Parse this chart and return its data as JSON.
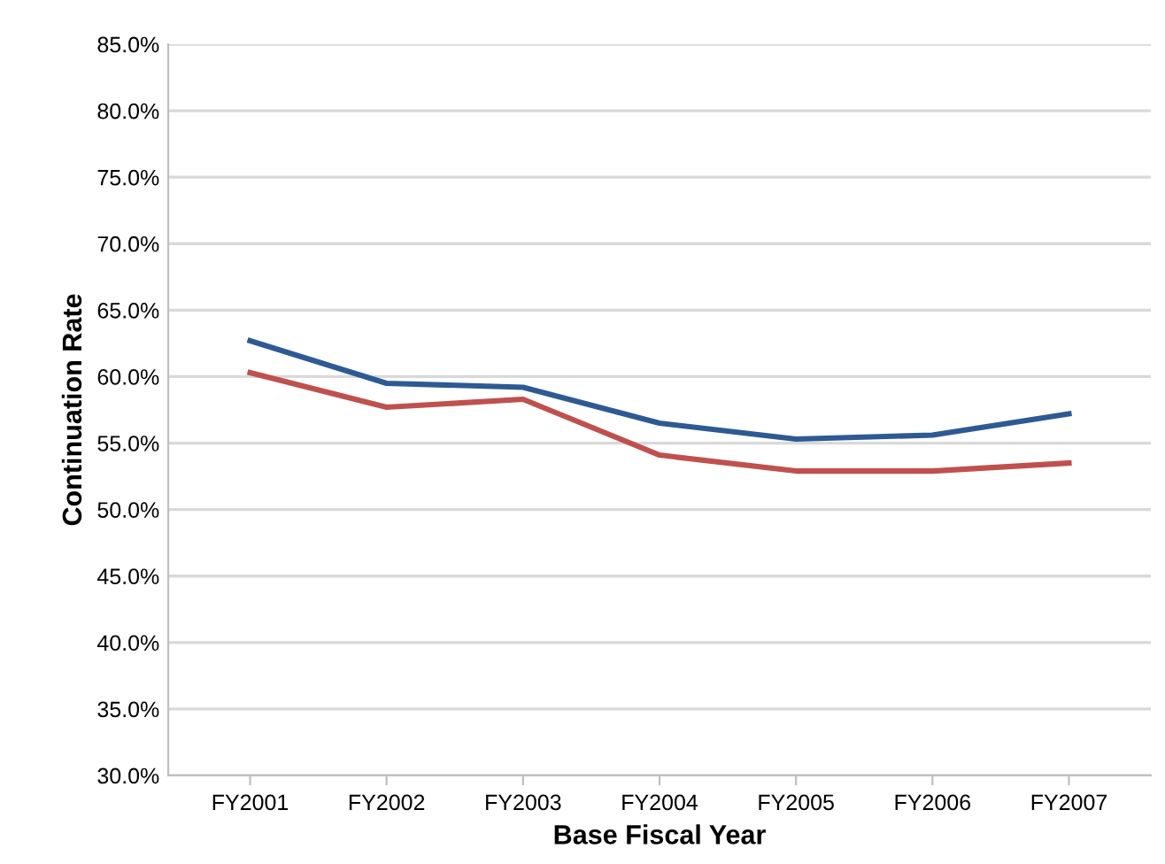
{
  "chart_data": {
    "type": "line",
    "xlabel": "Base Fiscal Year",
    "ylabel": "Continuation Rate",
    "categories": [
      "FY2001",
      "FY2002",
      "FY2003",
      "FY2004",
      "FY2005",
      "FY2006",
      "FY2007"
    ],
    "series": [
      {
        "color": "#2e5a94",
        "values": [
          62.7,
          59.5,
          59.2,
          56.5,
          55.3,
          55.6,
          57.2
        ]
      },
      {
        "color": "#c0504d",
        "values": [
          60.3,
          57.7,
          58.3,
          54.1,
          52.9,
          52.9,
          53.5
        ]
      }
    ],
    "ylim": [
      30,
      85
    ],
    "yticks": [
      {
        "value": 30,
        "label": "30.0%"
      },
      {
        "value": 35,
        "label": "35.0%"
      },
      {
        "value": 40,
        "label": "40.0%"
      },
      {
        "value": 45,
        "label": "45.0%"
      },
      {
        "value": 50,
        "label": "50.0%"
      },
      {
        "value": 55,
        "label": "55.0%"
      },
      {
        "value": 60,
        "label": "60.0%"
      },
      {
        "value": 65,
        "label": "65.0%"
      },
      {
        "value": 70,
        "label": "70.0%"
      },
      {
        "value": 75,
        "label": "75.0%"
      },
      {
        "value": 80,
        "label": "80.0%"
      },
      {
        "value": 85,
        "label": "85.0%"
      }
    ],
    "grid": "y",
    "legend": false,
    "marker": "none",
    "line_style": "solid"
  }
}
